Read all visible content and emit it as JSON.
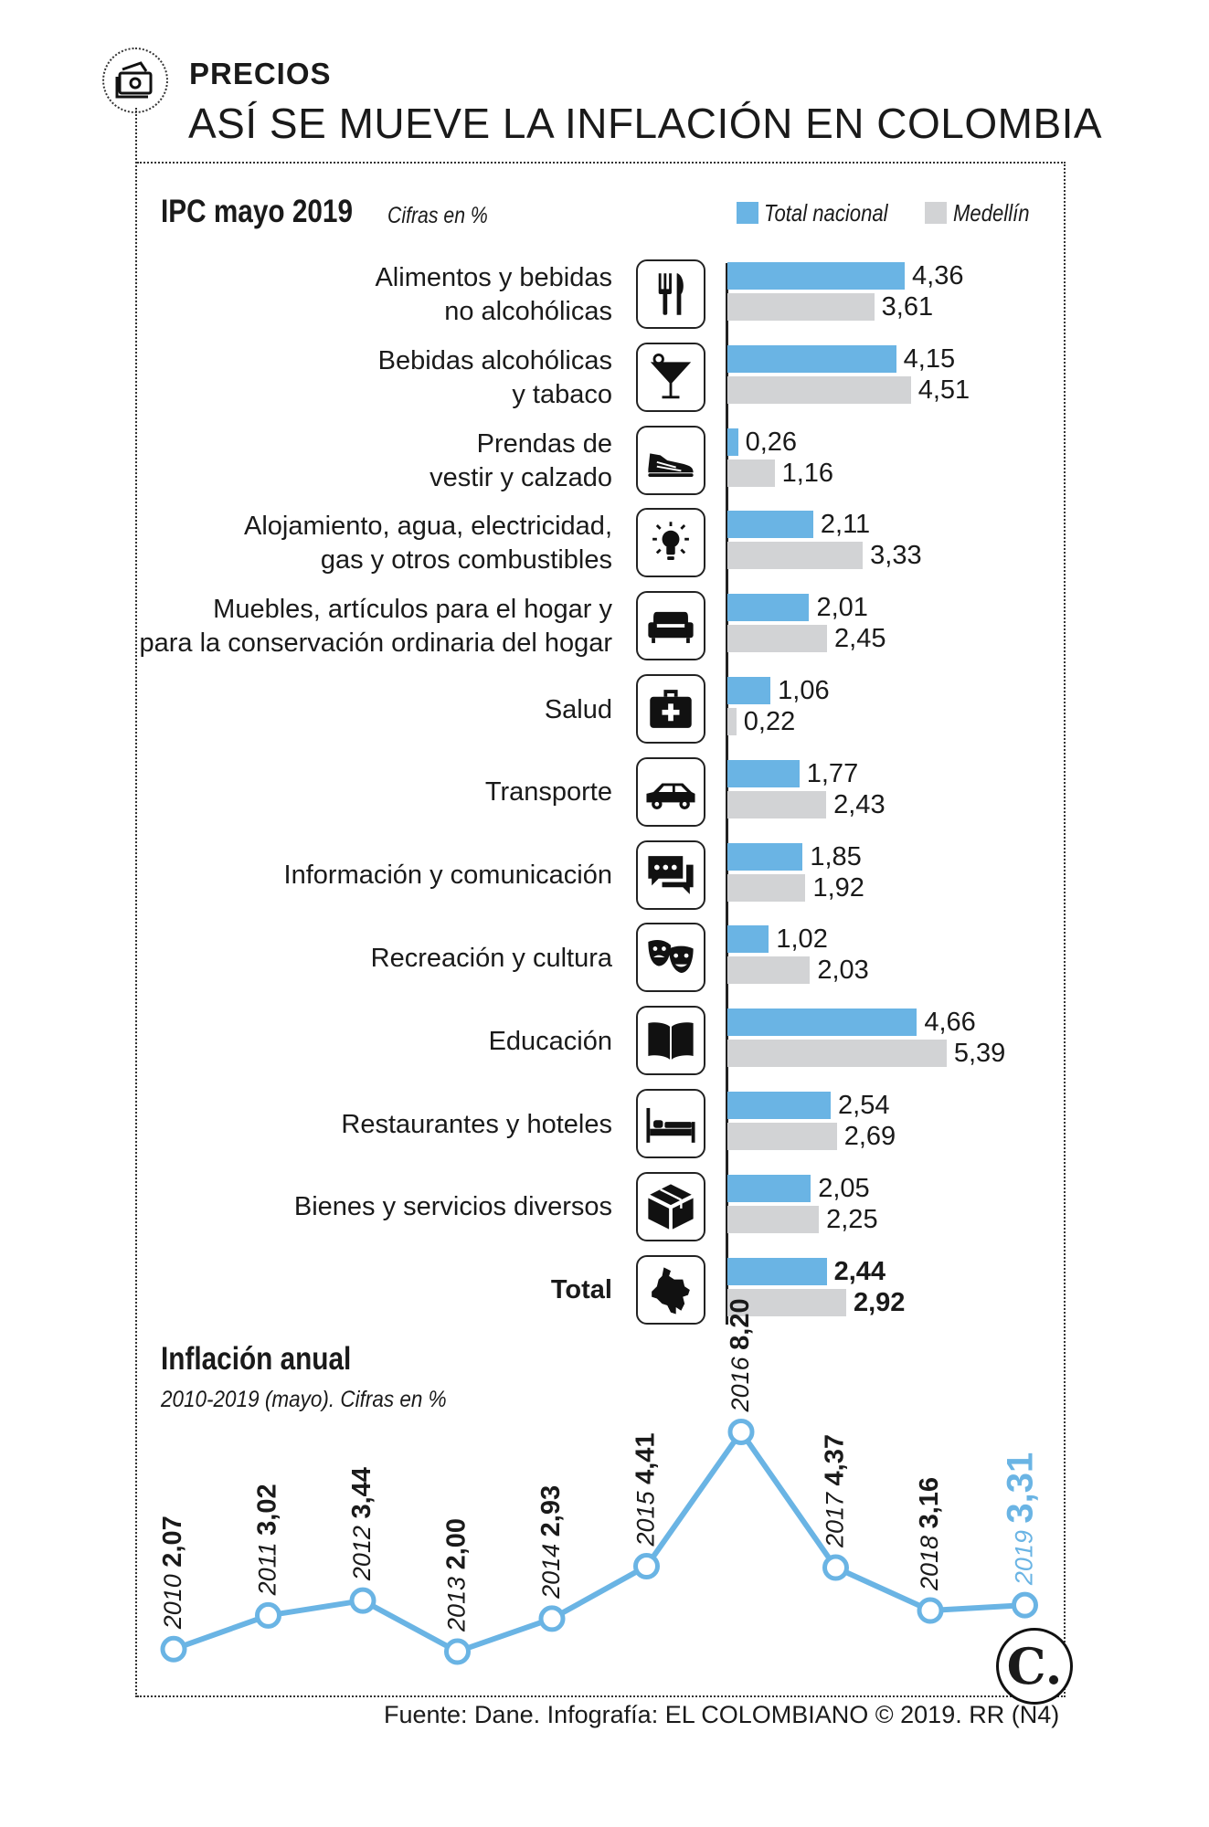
{
  "header": {
    "section": "PRECIOS",
    "title": "ASÍ SE MUEVE LA INFLACIÓN EN COLOMBIA",
    "icon": "money-icon"
  },
  "colors": {
    "total_nacional": "#6ab4e4",
    "medellin": "#d2d3d5",
    "line": "#6ab4e4"
  },
  "chart_data": [
    {
      "type": "bar",
      "title": "IPC mayo 2019",
      "subtitle": "Cifras en %",
      "legend": [
        "Total nacional",
        "Medellín"
      ],
      "legend_position": "top-right",
      "categories": [
        {
          "label": "Alimentos y bebidas\nno alcohólicas",
          "icon": "fork-knife-icon",
          "values": [
            4.36,
            3.61
          ],
          "labels": [
            "4,36",
            "3,61"
          ]
        },
        {
          "label": "Bebidas alcohólicas\ny tabaco",
          "icon": "cocktail-icon",
          "values": [
            4.15,
            4.51
          ],
          "labels": [
            "4,15",
            "4,51"
          ]
        },
        {
          "label": "Prendas de\nvestir y calzado",
          "icon": "shoe-icon",
          "values": [
            0.26,
            1.16
          ],
          "labels": [
            "0,26",
            "1,16"
          ]
        },
        {
          "label": "Alojamiento, agua, electricidad,\ngas y otros combustibles",
          "icon": "lightbulb-icon",
          "values": [
            2.11,
            3.33
          ],
          "labels": [
            "2,11",
            "3,33"
          ]
        },
        {
          "label": "Muebles, artículos para el hogar y\npara la conservación ordinaria del hogar",
          "icon": "armchair-icon",
          "values": [
            2.01,
            2.45
          ],
          "labels": [
            "2,01",
            "2,45"
          ]
        },
        {
          "label": "Salud",
          "icon": "medical-kit-icon",
          "values": [
            1.06,
            0.22
          ],
          "labels": [
            "1,06",
            "0,22"
          ]
        },
        {
          "label": "Transporte",
          "icon": "car-icon",
          "values": [
            1.77,
            2.43
          ],
          "labels": [
            "1,77",
            "2,43"
          ]
        },
        {
          "label": "Información y comunicación",
          "icon": "chat-bubbles-icon",
          "values": [
            1.85,
            1.92
          ],
          "labels": [
            "1,85",
            "1,92"
          ]
        },
        {
          "label": "Recreación y cultura",
          "icon": "theater-masks-icon",
          "values": [
            1.02,
            2.03
          ],
          "labels": [
            "1,02",
            "2,03"
          ]
        },
        {
          "label": "Educación",
          "icon": "book-icon",
          "values": [
            4.66,
            5.39
          ],
          "labels": [
            "4,66",
            "5,39"
          ]
        },
        {
          "label": "Restaurantes y hoteles",
          "icon": "bed-icon",
          "values": [
            2.54,
            2.69
          ],
          "labels": [
            "2,54",
            "2,69"
          ]
        },
        {
          "label": "Bienes y servicios diversos",
          "icon": "box-icon",
          "values": [
            2.05,
            2.25
          ],
          "labels": [
            "2,05",
            "2,25"
          ]
        },
        {
          "label": "Total",
          "icon": "colombia-map-icon",
          "values": [
            2.44,
            2.92
          ],
          "labels": [
            "2,44",
            "2,92"
          ],
          "bold": true
        }
      ]
    },
    {
      "type": "line",
      "title": "Inflación anual",
      "subtitle": "2010-2019 (mayo). Cifras en %",
      "x": [
        "2010",
        "2011",
        "2012",
        "2013",
        "2014",
        "2015",
        "2016",
        "2017",
        "2018",
        "2019"
      ],
      "values": [
        2.07,
        3.02,
        3.44,
        2.0,
        2.93,
        4.41,
        8.2,
        4.37,
        3.16,
        3.31
      ],
      "labels": [
        "2,07",
        "3,02",
        "3,44",
        "2,00",
        "2,93",
        "4,41",
        "8,20",
        "4,37",
        "3,16",
        "3,31"
      ]
    }
  ],
  "footer": {
    "source": "Fuente: Dane. Infografía: EL COLOMBIANO © 2019. RR (N4)",
    "logo": "C."
  }
}
